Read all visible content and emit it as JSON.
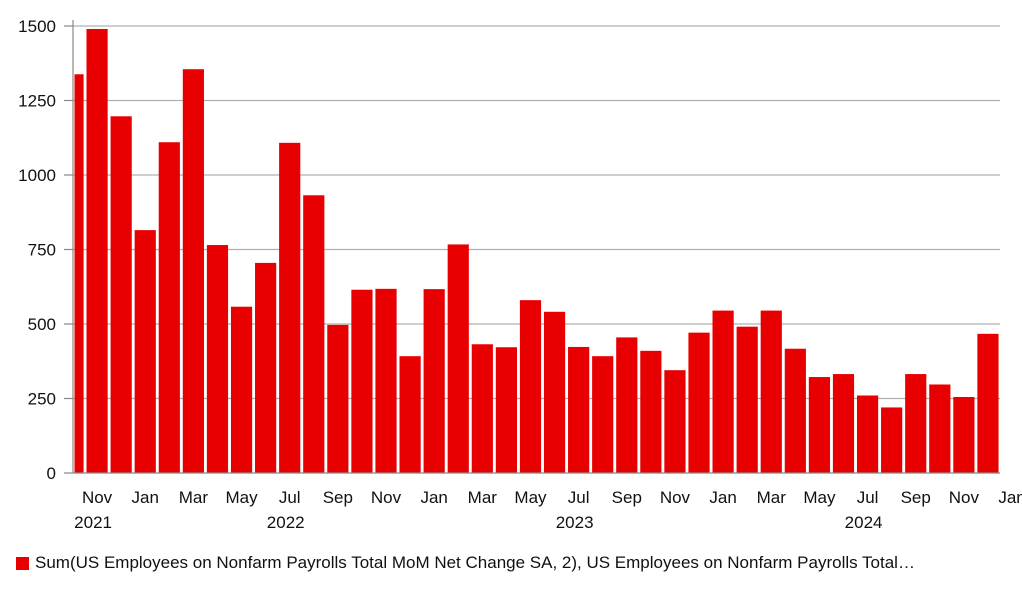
{
  "chart_data": {
    "type": "bar",
    "categories": [
      "Oct 2021",
      "Nov 2021",
      "Dec 2021",
      "Jan 2022",
      "Feb 2022",
      "Mar 2022",
      "Apr 2022",
      "May 2022",
      "Jun 2022",
      "Jul 2022",
      "Aug 2022",
      "Sep 2022",
      "Oct 2022",
      "Nov 2022",
      "Dec 2022",
      "Jan 2023",
      "Feb 2023",
      "Mar 2023",
      "Apr 2023",
      "May 2023",
      "Jun 2023",
      "Jul 2023",
      "Aug 2023",
      "Sep 2023",
      "Oct 2023",
      "Nov 2023",
      "Dec 2023",
      "Jan 2024",
      "Feb 2024",
      "Mar 2024",
      "Apr 2024",
      "May 2024",
      "Jun 2024",
      "Jul 2024",
      "Aug 2024",
      "Sep 2024",
      "Oct 2024",
      "Nov 2024",
      "Dec 2024"
    ],
    "values": [
      1338,
      1490,
      1197,
      815,
      1110,
      1355,
      765,
      558,
      705,
      1108,
      932,
      497,
      615,
      618,
      392,
      617,
      767,
      432,
      422,
      580,
      541,
      423,
      392,
      455,
      410,
      345,
      471,
      545,
      491,
      545,
      417,
      322,
      332,
      260,
      220,
      332,
      297,
      255,
      467
    ],
    "ylim": [
      0,
      1500
    ],
    "yticks": [
      0,
      250,
      500,
      750,
      1000,
      1250,
      1500
    ],
    "xtick_labels": [
      {
        "index": 1,
        "month": "Nov",
        "year": "2021"
      },
      {
        "index": 3,
        "month": "Jan",
        "year": ""
      },
      {
        "index": 5,
        "month": "Mar",
        "year": ""
      },
      {
        "index": 7,
        "month": "May",
        "year": ""
      },
      {
        "index": 9,
        "month": "Jul",
        "year": "2022"
      },
      {
        "index": 11,
        "month": "Sep",
        "year": ""
      },
      {
        "index": 13,
        "month": "Nov",
        "year": ""
      },
      {
        "index": 15,
        "month": "Jan",
        "year": ""
      },
      {
        "index": 17,
        "month": "Mar",
        "year": ""
      },
      {
        "index": 19,
        "month": "May",
        "year": ""
      },
      {
        "index": 21,
        "month": "Jul",
        "year": "2023"
      },
      {
        "index": 23,
        "month": "Sep",
        "year": ""
      },
      {
        "index": 25,
        "month": "Nov",
        "year": ""
      },
      {
        "index": 27,
        "month": "Jan",
        "year": ""
      },
      {
        "index": 29,
        "month": "Mar",
        "year": ""
      },
      {
        "index": 31,
        "month": "May",
        "year": ""
      },
      {
        "index": 33,
        "month": "Jul",
        "year": "2024"
      },
      {
        "index": 35,
        "month": "Sep",
        "year": ""
      },
      {
        "index": 37,
        "month": "Nov",
        "year": ""
      },
      {
        "index": 39,
        "month": "Jan",
        "year": ""
      }
    ],
    "grid": "horizontal",
    "legend_position": "bottom-left",
    "series": [
      {
        "name": "Sum(US Employees on Nonfarm Payrolls Total MoM Net Change SA, 2), US Employees on Nonfarm Payrolls Total…",
        "color": "#e80000"
      }
    ]
  },
  "colors": {
    "bar": "#e80000",
    "grid": "#b0b0b0",
    "axis": "#888888"
  }
}
